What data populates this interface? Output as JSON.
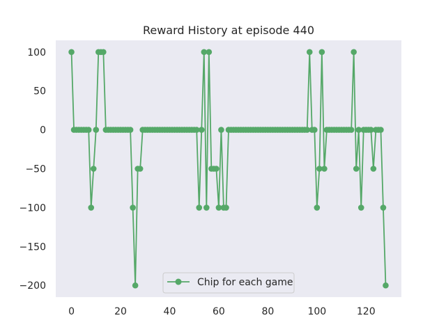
{
  "chart_data": {
    "type": "line",
    "title": "Reward History at episode 440",
    "xlabel": "",
    "ylabel": "",
    "xlim": [
      -6.4,
      134.4
    ],
    "ylim": [
      -215,
      115
    ],
    "xticks": [
      0,
      20,
      40,
      60,
      80,
      100,
      120
    ],
    "yticks": [
      100,
      50,
      0,
      -50,
      -100,
      -150,
      -200
    ],
    "xtick_labels": [
      "0",
      "20",
      "40",
      "60",
      "80",
      "100",
      "120"
    ],
    "ytick_labels": [
      "100",
      "50",
      "0",
      "−50",
      "−100",
      "−150",
      "−200"
    ],
    "grid": false,
    "legend_position": "lower center",
    "colors": {
      "series": "#55a868",
      "plot_bg": "#eaeaf2",
      "text": "#262626"
    },
    "series": [
      {
        "name": "Chip for each game",
        "marker": "circle",
        "x": [
          0,
          1,
          2,
          3,
          4,
          5,
          6,
          7,
          8,
          9,
          10,
          11,
          12,
          13,
          14,
          15,
          16,
          17,
          18,
          19,
          20,
          21,
          22,
          23,
          24,
          25,
          26,
          27,
          28,
          29,
          30,
          31,
          32,
          33,
          34,
          35,
          36,
          37,
          38,
          39,
          40,
          41,
          42,
          43,
          44,
          45,
          46,
          47,
          48,
          49,
          50,
          51,
          52,
          53,
          54,
          55,
          56,
          57,
          58,
          59,
          60,
          61,
          62,
          63,
          64,
          65,
          66,
          67,
          68,
          69,
          70,
          71,
          72,
          73,
          74,
          75,
          76,
          77,
          78,
          79,
          80,
          81,
          82,
          83,
          84,
          85,
          86,
          87,
          88,
          89,
          90,
          91,
          92,
          93,
          94,
          95,
          96,
          97,
          98,
          99,
          100,
          101,
          102,
          103,
          104,
          105,
          106,
          107,
          108,
          109,
          110,
          111,
          112,
          113,
          114,
          115,
          116,
          117,
          118,
          119,
          120,
          121,
          122,
          123,
          124,
          125,
          126,
          127,
          128
        ],
        "values": [
          100,
          0,
          0,
          0,
          0,
          0,
          0,
          0,
          -100,
          -50,
          0,
          100,
          100,
          100,
          0,
          0,
          0,
          0,
          0,
          0,
          0,
          0,
          0,
          0,
          0,
          -100,
          -200,
          -50,
          -50,
          0,
          0,
          0,
          0,
          0,
          0,
          0,
          0,
          0,
          0,
          0,
          0,
          0,
          0,
          0,
          0,
          0,
          0,
          0,
          0,
          0,
          0,
          0,
          -100,
          0,
          100,
          -100,
          100,
          -50,
          -50,
          -50,
          -100,
          0,
          -100,
          -100,
          0,
          0,
          0,
          0,
          0,
          0,
          0,
          0,
          0,
          0,
          0,
          0,
          0,
          0,
          0,
          0,
          0,
          0,
          0,
          0,
          0,
          0,
          0,
          0,
          0,
          0,
          0,
          0,
          0,
          0,
          0,
          0,
          0,
          100,
          0,
          0,
          -100,
          -50,
          100,
          -50,
          0,
          0,
          0,
          0,
          0,
          0,
          0,
          0,
          0,
          0,
          0,
          100,
          -50,
          0,
          -100,
          0,
          0,
          0,
          0,
          -50,
          0,
          0,
          0,
          -100,
          -200
        ]
      }
    ]
  }
}
